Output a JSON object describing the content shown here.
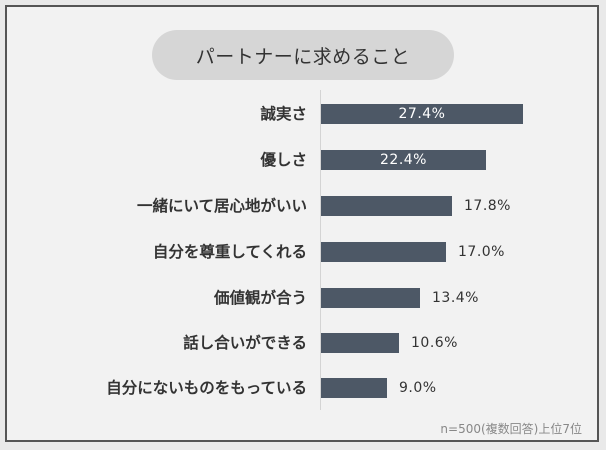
{
  "title": "パートナーに求めること",
  "footnote": "n=500(複数回答)上位7位",
  "colors": {
    "bar": "#4d5866",
    "pill": "#d6d6d6",
    "background": "#f2f2f2"
  },
  "chart_data": {
    "type": "bar",
    "orientation": "horizontal",
    "title": "パートナーに求めること",
    "categories": [
      "誠実さ",
      "優しさ",
      "一緒にいて居心地がいい",
      "自分を尊重してくれる",
      "価値観が合う",
      "話し合いができる",
      "自分にないものをもっている"
    ],
    "values": [
      27.4,
      22.4,
      17.8,
      17.0,
      13.4,
      10.6,
      9.0
    ],
    "value_labels": [
      "27.4%",
      "22.4%",
      "17.8%",
      "17.0%",
      "13.4%",
      "10.6%",
      "9.0%"
    ],
    "unit": "%",
    "note": "n=500(複数回答)上位7位",
    "xlabel": "",
    "ylabel": "",
    "grid": false
  }
}
